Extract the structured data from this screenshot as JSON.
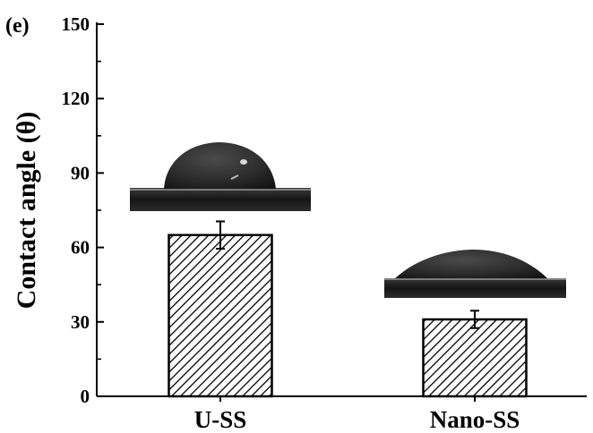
{
  "panel_label": "(e)",
  "chart_data": {
    "type": "bar",
    "title": "",
    "xlabel": "",
    "ylabel": "Contact angle (θ)",
    "categories": [
      "U-SS",
      "Nano-SS"
    ],
    "values": [
      65,
      31
    ],
    "errors": [
      5.5,
      3.5
    ],
    "ylim": [
      0,
      150
    ],
    "yticks": [
      0,
      30,
      60,
      90,
      120,
      150
    ],
    "bar_fill": "hatched",
    "grid": false,
    "legend": "none",
    "insets": [
      {
        "category": "U-SS",
        "depicts": "water-droplet-photo-high-angle"
      },
      {
        "category": "Nano-SS",
        "depicts": "water-droplet-photo-low-angle"
      }
    ]
  },
  "colors": {
    "axis": "#000000",
    "hatch": "#000000",
    "bar_bg": "#ffffff",
    "photo_bg": "#ffffff",
    "substrate": "#1b1b1b",
    "droplet": "#2a2a2a"
  }
}
